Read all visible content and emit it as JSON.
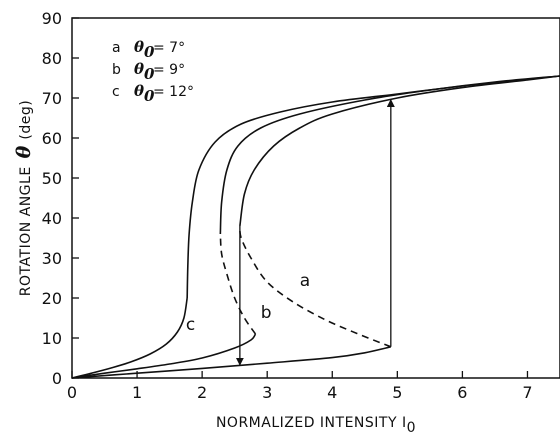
{
  "chart_data": {
    "type": "line",
    "title": "",
    "ylabel": "ROTATION ANGLE",
    "ylabel_symbol": "θ",
    "ylabel_unit": "(deg)",
    "xlabel": "NORMALIZED INTENSITY I",
    "xlabel_subscript": "0",
    "xlim": [
      0,
      7.5
    ],
    "ylim": [
      0,
      90
    ],
    "xticks": [
      0,
      1,
      2,
      3,
      4,
      5,
      6,
      7
    ],
    "yticks": [
      0,
      10,
      20,
      30,
      40,
      50,
      60,
      70,
      80,
      90
    ],
    "grid": false,
    "legend": {
      "position": "top-left",
      "entries": [
        {
          "key": "a",
          "symbol": "θ",
          "sub": "0",
          "text": "= 7°"
        },
        {
          "key": "b",
          "symbol": "θ",
          "sub": "0",
          "text": "= 9°"
        },
        {
          "key": "c",
          "symbol": "θ",
          "sub": "0",
          "text": "= 12°"
        }
      ]
    },
    "series": [
      {
        "name": "a",
        "label": "a",
        "label_at": [
          3.5,
          23
        ],
        "lower": [
          [
            0,
            0
          ],
          [
            1,
            1.2
          ],
          [
            2,
            2.4
          ],
          [
            3,
            3.7
          ],
          [
            4,
            5.1
          ],
          [
            4.5,
            6.3
          ],
          [
            4.9,
            7.8
          ]
        ],
        "unstable": [
          [
            4.9,
            7.8
          ],
          [
            4.4,
            11
          ],
          [
            3.9,
            14.5
          ],
          [
            3.4,
            19
          ],
          [
            3.0,
            24
          ],
          [
            2.75,
            30
          ],
          [
            2.6,
            35
          ],
          [
            2.58,
            38
          ]
        ],
        "upper": [
          [
            2.58,
            38
          ],
          [
            2.65,
            46
          ],
          [
            2.8,
            52
          ],
          [
            3.1,
            58
          ],
          [
            3.5,
            62.5
          ],
          [
            4.0,
            66
          ],
          [
            5.0,
            70
          ],
          [
            6.0,
            72.6
          ],
          [
            7.0,
            74.5
          ],
          [
            7.5,
            75.5
          ]
        ]
      },
      {
        "name": "b",
        "label": "b",
        "label_at": [
          2.9,
          15
        ],
        "lower": [
          [
            0,
            0
          ],
          [
            0.5,
            1.2
          ],
          [
            1,
            2.3
          ],
          [
            1.5,
            3.5
          ],
          [
            2,
            5
          ],
          [
            2.5,
            7.5
          ],
          [
            2.75,
            9.5
          ],
          [
            2.82,
            11
          ]
        ],
        "unstable": [
          [
            2.82,
            11
          ],
          [
            2.65,
            15
          ],
          [
            2.5,
            20
          ],
          [
            2.38,
            26
          ],
          [
            2.3,
            31
          ],
          [
            2.28,
            36
          ]
        ],
        "upper": [
          [
            2.28,
            36
          ],
          [
            2.3,
            44
          ],
          [
            2.38,
            52
          ],
          [
            2.55,
            58
          ],
          [
            2.9,
            62.5
          ],
          [
            3.5,
            66
          ],
          [
            4.5,
            69.5
          ],
          [
            5.5,
            72
          ],
          [
            6.5,
            74
          ],
          [
            7.5,
            75.5
          ]
        ]
      },
      {
        "name": "c",
        "label": "c",
        "label_at": [
          1.75,
          12
        ],
        "lower": [
          [
            0,
            0
          ],
          [
            0.3,
            1.2
          ],
          [
            0.6,
            2.5
          ],
          [
            0.9,
            4
          ],
          [
            1.2,
            6
          ],
          [
            1.45,
            8.5
          ],
          [
            1.62,
            11.5
          ],
          [
            1.72,
            15
          ],
          [
            1.77,
            20
          ]
        ],
        "upper": [
          [
            1.77,
            20
          ],
          [
            1.78,
            28
          ],
          [
            1.8,
            36
          ],
          [
            1.85,
            44
          ],
          [
            1.95,
            52
          ],
          [
            2.2,
            59
          ],
          [
            2.6,
            63.5
          ],
          [
            3.2,
            66.5
          ],
          [
            4.0,
            69
          ],
          [
            5.0,
            71
          ],
          [
            6.0,
            73
          ],
          [
            7.0,
            74.7
          ],
          [
            7.5,
            75.5
          ]
        ]
      }
    ],
    "arrows": [
      {
        "from": [
          2.58,
          38
        ],
        "to": [
          2.58,
          3.3
        ]
      },
      {
        "from": [
          4.9,
          7.8
        ],
        "to": [
          4.9,
          69.5
        ]
      }
    ]
  }
}
